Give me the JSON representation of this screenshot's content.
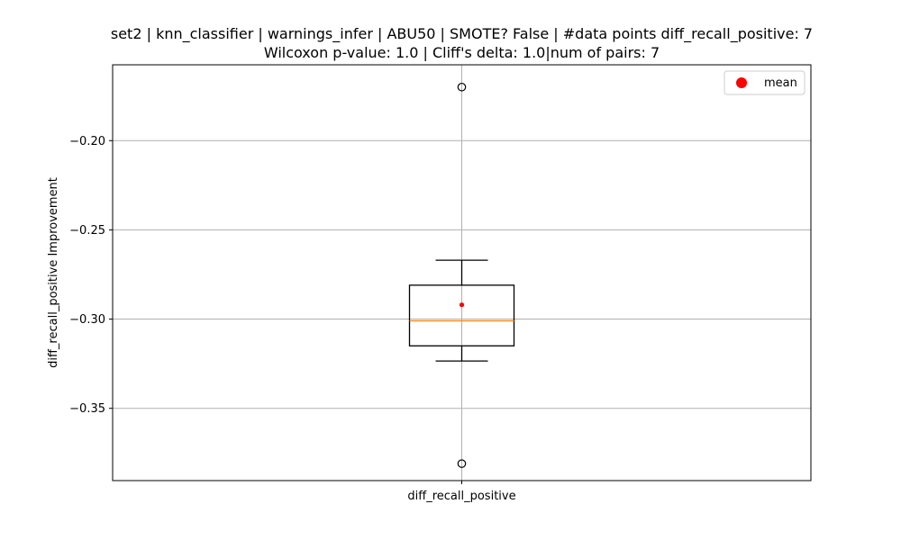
{
  "chart_data": {
    "type": "box",
    "title": "set2 | knn_classifier | warnings_infer | ABU50 | SMOTE? False | #data points diff_recall_positive: 7",
    "subtitle": "Wilcoxon p-value: 1.0 | Cliff's delta: 1.0|num of pairs: 7",
    "xlabel": "",
    "ylabel": "diff_recall_positive Improvement",
    "categories": [
      "diff_recall_positive"
    ],
    "ylim": [
      -0.3905,
      -0.1575
    ],
    "yticks": [
      -0.35,
      -0.3,
      -0.25,
      -0.2
    ],
    "ytick_labels": [
      "−0.35",
      "−0.30",
      "−0.25",
      "−0.20"
    ],
    "grid": true,
    "legend": {
      "position": "top-right",
      "entries": [
        {
          "label": "mean",
          "color": "#ff0000"
        }
      ]
    },
    "box": {
      "whisker_low": -0.3235,
      "q1": -0.315,
      "median": -0.301,
      "q3": -0.281,
      "whisker_high": -0.267,
      "mean": -0.292,
      "outliers": [
        -0.17,
        -0.381
      ]
    },
    "colors": {
      "median": "#ff7f0e",
      "mean": "#ff0000",
      "box": "#000000",
      "grid": "#b0b0b0"
    }
  }
}
